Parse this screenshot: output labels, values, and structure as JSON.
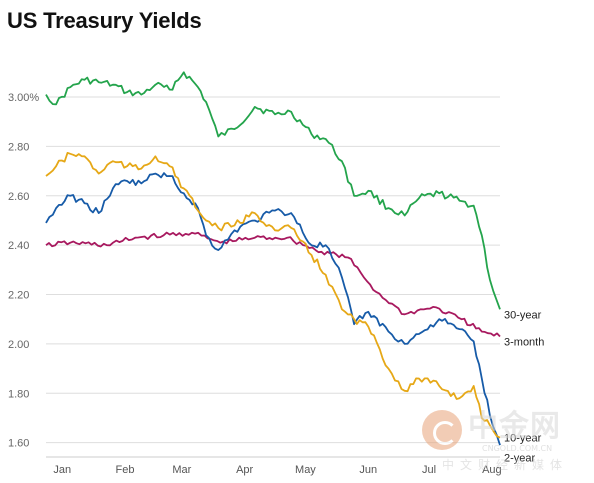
{
  "chart_data": {
    "type": "line",
    "title": "US Treasury Yields",
    "xlabel": "",
    "ylabel": "",
    "ylim": [
      1.55,
      3.15
    ],
    "yticks": [
      "3.00%",
      "2.80",
      "2.60",
      "2.40",
      "2.20",
      "2.00",
      "1.80",
      "1.60"
    ],
    "ytick_values": [
      3.0,
      2.8,
      2.6,
      2.4,
      2.2,
      2.0,
      1.8,
      1.6
    ],
    "x_months": [
      "Jan",
      "Feb",
      "Mar",
      "Apr",
      "May",
      "Jun",
      "Jul",
      "Aug"
    ],
    "x_range": [
      "2019-01-02",
      "2019-08-14"
    ],
    "x_month_starts": [
      "2019-01-10",
      "2019-02-10",
      "2019-03-10",
      "2019-04-10",
      "2019-05-10",
      "2019-06-10",
      "2019-07-10",
      "2019-08-10"
    ],
    "grid": true,
    "legend": "labels at line ends (right)",
    "series": [
      {
        "name": "30-year",
        "color": "#24a44c",
        "x": [
          "2019-01-02",
          "2019-01-07",
          "2019-01-14",
          "2019-01-21",
          "2019-01-28",
          "2019-02-04",
          "2019-02-11",
          "2019-02-18",
          "2019-02-25",
          "2019-03-04",
          "2019-03-11",
          "2019-03-18",
          "2019-03-22",
          "2019-03-28",
          "2019-04-05",
          "2019-04-15",
          "2019-04-25",
          "2019-05-03",
          "2019-05-13",
          "2019-05-20",
          "2019-05-28",
          "2019-06-03",
          "2019-06-10",
          "2019-06-20",
          "2019-06-28",
          "2019-07-05",
          "2019-07-15",
          "2019-07-25",
          "2019-08-01",
          "2019-08-05",
          "2019-08-09",
          "2019-08-14"
        ],
        "y": [
          3.01,
          2.97,
          3.04,
          3.07,
          3.06,
          3.05,
          3.02,
          3.01,
          3.05,
          3.03,
          3.1,
          3.04,
          2.98,
          2.84,
          2.87,
          2.96,
          2.93,
          2.94,
          2.85,
          2.83,
          2.74,
          2.6,
          2.62,
          2.55,
          2.52,
          2.59,
          2.61,
          2.58,
          2.56,
          2.44,
          2.26,
          2.14
        ]
      },
      {
        "name": "3-month",
        "color": "#a8195f",
        "x": [
          "2019-01-02",
          "2019-01-14",
          "2019-02-01",
          "2019-02-15",
          "2019-03-01",
          "2019-03-15",
          "2019-03-29",
          "2019-04-15",
          "2019-05-01",
          "2019-05-15",
          "2019-05-31",
          "2019-06-14",
          "2019-06-28",
          "2019-07-12",
          "2019-07-26",
          "2019-08-05",
          "2019-08-14"
        ],
        "y": [
          2.4,
          2.41,
          2.4,
          2.43,
          2.44,
          2.45,
          2.41,
          2.43,
          2.43,
          2.38,
          2.35,
          2.21,
          2.12,
          2.15,
          2.1,
          2.05,
          2.03
        ]
      },
      {
        "name": "10-year",
        "color": "#175ba8",
        "x": [
          "2019-01-02",
          "2019-01-07",
          "2019-01-14",
          "2019-01-21",
          "2019-01-28",
          "2019-02-04",
          "2019-02-11",
          "2019-02-18",
          "2019-02-25",
          "2019-03-04",
          "2019-03-11",
          "2019-03-18",
          "2019-03-22",
          "2019-03-28",
          "2019-04-05",
          "2019-04-15",
          "2019-04-25",
          "2019-05-03",
          "2019-05-13",
          "2019-05-20",
          "2019-05-28",
          "2019-06-03",
          "2019-06-10",
          "2019-06-20",
          "2019-06-28",
          "2019-07-05",
          "2019-07-15",
          "2019-07-25",
          "2019-08-01",
          "2019-08-05",
          "2019-08-09",
          "2019-08-14"
        ],
        "y": [
          2.49,
          2.55,
          2.6,
          2.57,
          2.53,
          2.63,
          2.66,
          2.65,
          2.69,
          2.68,
          2.61,
          2.55,
          2.44,
          2.38,
          2.46,
          2.5,
          2.54,
          2.53,
          2.4,
          2.4,
          2.27,
          2.08,
          2.13,
          2.05,
          2.0,
          2.04,
          2.1,
          2.06,
          2.01,
          1.86,
          1.71,
          1.59
        ]
      },
      {
        "name": "2-year",
        "color": "#e6a817",
        "x": [
          "2019-01-02",
          "2019-01-07",
          "2019-01-14",
          "2019-01-21",
          "2019-01-28",
          "2019-02-04",
          "2019-02-11",
          "2019-02-18",
          "2019-02-25",
          "2019-03-04",
          "2019-03-11",
          "2019-03-18",
          "2019-03-22",
          "2019-03-28",
          "2019-04-05",
          "2019-04-15",
          "2019-04-25",
          "2019-05-03",
          "2019-05-13",
          "2019-05-20",
          "2019-05-28",
          "2019-06-03",
          "2019-06-10",
          "2019-06-20",
          "2019-06-28",
          "2019-07-05",
          "2019-07-15",
          "2019-07-25",
          "2019-08-01",
          "2019-08-05",
          "2019-08-09",
          "2019-08-14"
        ],
        "y": [
          2.68,
          2.72,
          2.77,
          2.76,
          2.69,
          2.74,
          2.72,
          2.71,
          2.76,
          2.72,
          2.63,
          2.54,
          2.5,
          2.47,
          2.48,
          2.53,
          2.46,
          2.47,
          2.36,
          2.28,
          2.14,
          2.1,
          2.07,
          1.9,
          1.81,
          1.86,
          1.83,
          1.78,
          1.83,
          1.7,
          1.67,
          1.62
        ]
      }
    ]
  },
  "watermark": {
    "brand": "中金网",
    "url": "CNGOLD.COM.CN",
    "subtitle": "中文财经新媒体",
    "logo_color": "#e8a47a"
  }
}
